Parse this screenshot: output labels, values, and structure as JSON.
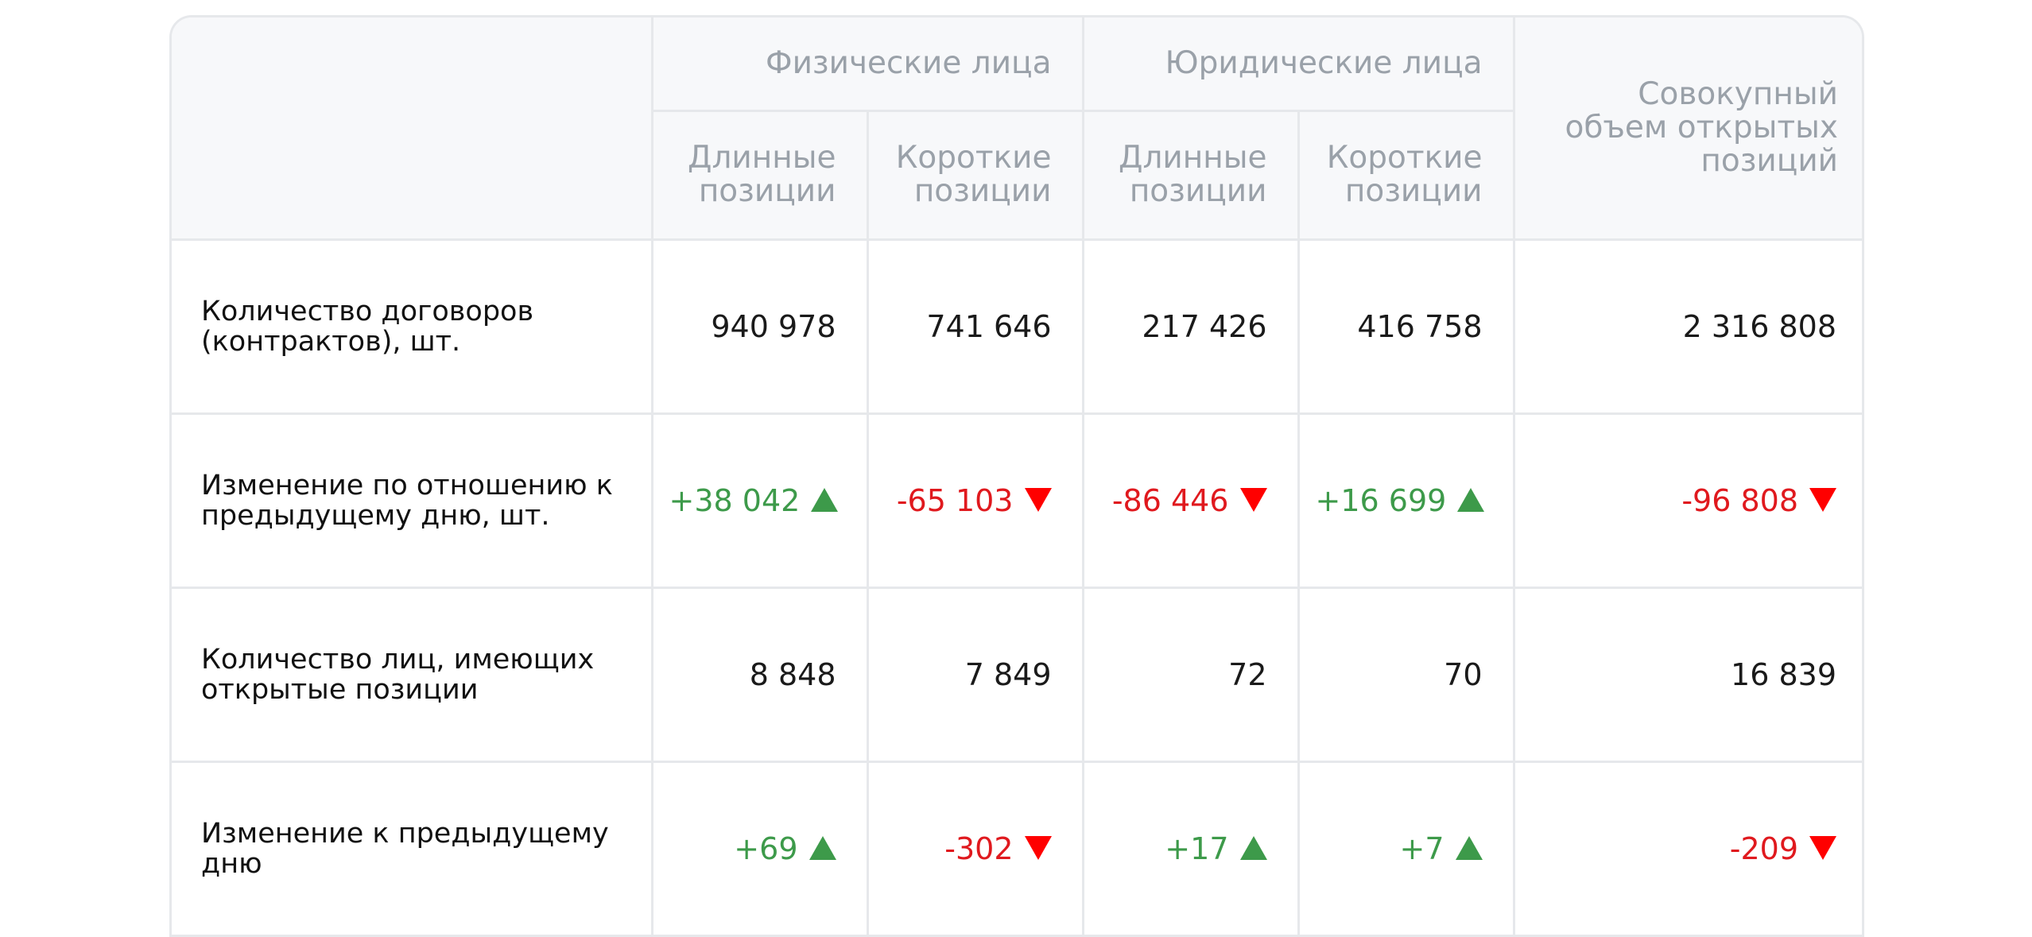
{
  "header": {
    "group_individuals": "Физические лица",
    "group_legal": "Юридические лица",
    "total_label": "Совокупный объем открытых позиций",
    "long_label": "Длинные позиции",
    "short_label": "Короткие позиции"
  },
  "rows": [
    {
      "label": "Количество договоров (контрактов), шт.",
      "cells": [
        {
          "text": "940 978",
          "trend": "none"
        },
        {
          "text": "741 646",
          "trend": "none"
        },
        {
          "text": "217 426",
          "trend": "none"
        },
        {
          "text": "416 758",
          "trend": "none"
        },
        {
          "text": "2 316 808",
          "trend": "none"
        }
      ]
    },
    {
      "label": "Изменение по отношению к предыдущему дню, шт.",
      "cells": [
        {
          "text": "+38 042",
          "trend": "up"
        },
        {
          "text": "-65 103",
          "trend": "down"
        },
        {
          "text": "-86 446",
          "trend": "down"
        },
        {
          "text": "+16 699",
          "trend": "up"
        },
        {
          "text": "-96 808",
          "trend": "down"
        }
      ]
    },
    {
      "label": "Количество лиц, имеющих открытые позиции",
      "cells": [
        {
          "text": "8 848",
          "trend": "none"
        },
        {
          "text": "7 849",
          "trend": "none"
        },
        {
          "text": "72",
          "trend": "none"
        },
        {
          "text": "70",
          "trend": "none"
        },
        {
          "text": "16 839",
          "trend": "none"
        }
      ]
    },
    {
      "label": "Изменение к предыдущему дню",
      "cells": [
        {
          "text": "+69",
          "trend": "up"
        },
        {
          "text": "-302",
          "trend": "down"
        },
        {
          "text": "+17",
          "trend": "up"
        },
        {
          "text": "+7",
          "trend": "up"
        },
        {
          "text": "-209",
          "trend": "down"
        }
      ]
    }
  ],
  "colors": {
    "positive": "#3d9a4a",
    "negative": "#e0191e",
    "header_text": "#9aa1a9",
    "header_bg": "#f7f8fa",
    "border": "#e6e8eb"
  },
  "icons": {
    "up": "triangle-up-icon",
    "down": "triangle-down-icon"
  }
}
